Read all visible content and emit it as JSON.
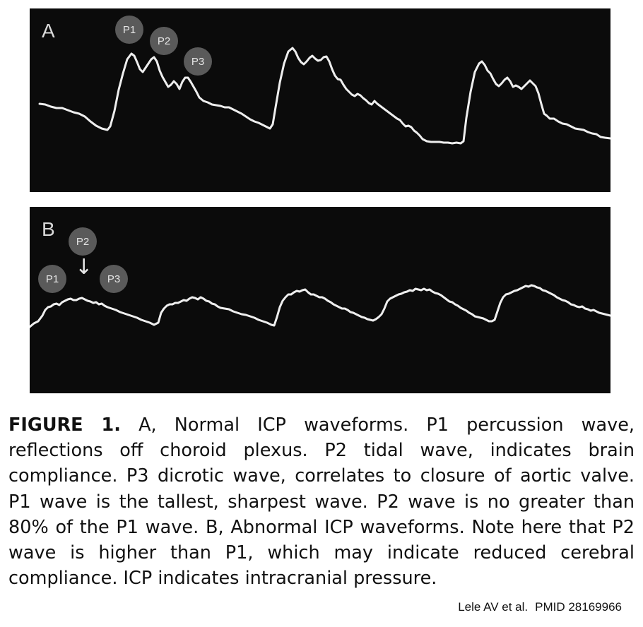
{
  "figure": {
    "panels": [
      {
        "letter": "A",
        "state": "normal",
        "markers": [
          "P1",
          "P2",
          "P3"
        ],
        "trace_color": "#eeeeee"
      },
      {
        "letter": "B",
        "state": "abnormal",
        "markers": [
          "P1",
          "P2",
          "P3"
        ],
        "arrow": "↓",
        "trace_color": "#eeeeee"
      }
    ],
    "panel_background": "#0b0b0b",
    "marker_color": "#5a5a5a"
  },
  "caption": {
    "label": "FIGURE 1.",
    "text": "A, Normal ICP waveforms. P1 percussion wave, reflections off choroid plexus. P2 tidal wave, indicates brain compliance. P3 dicrotic wave, correlates to closure of aortic valve. P1 wave is the tallest, sharpest wave. P2 wave is no greater than 80% of the P1 wave. B, Abnormal ICP waveforms. Note here that P2 wave is higher than P1, which may indicate reduced cerebral compliance. ICP indicates intracranial pres­sure."
  },
  "credit": {
    "authors": "Lele AV et al.",
    "pmid": "PMID  28169966"
  }
}
